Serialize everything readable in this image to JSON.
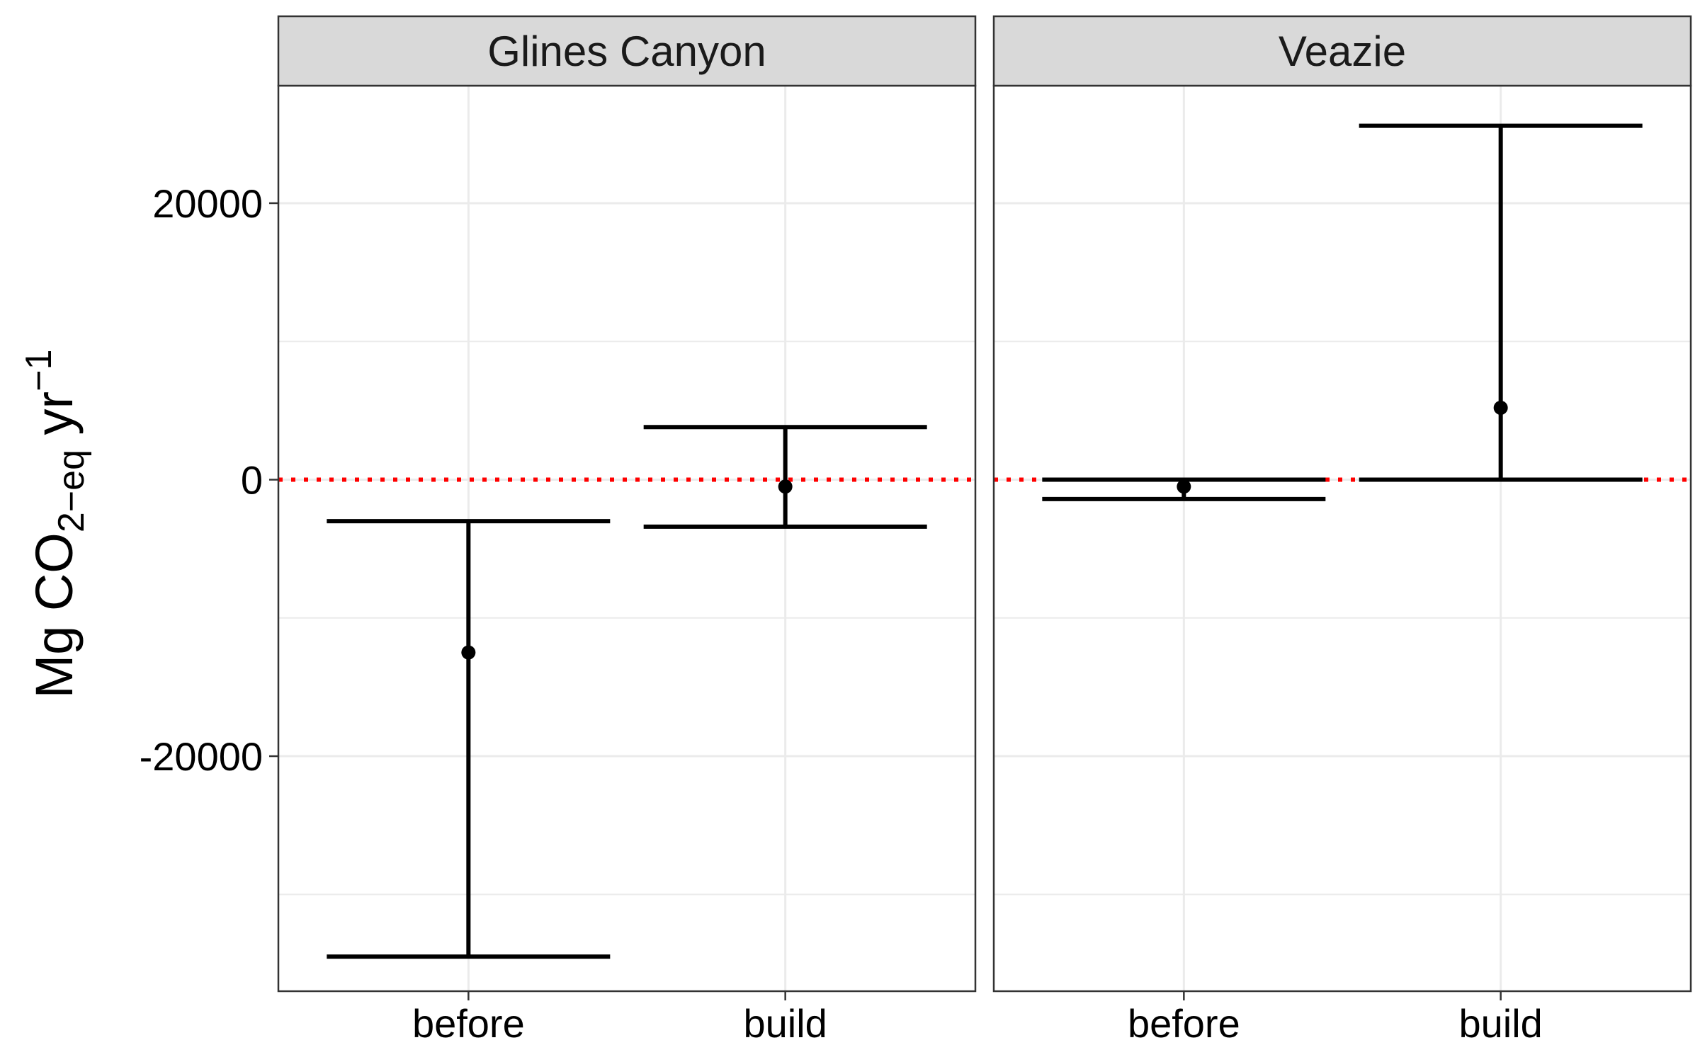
{
  "chart_data": {
    "type": "errorbar",
    "ylabel": {
      "base": "Mg CO",
      "sub": "2−eq",
      "mid": " yr",
      "sup": "−1"
    },
    "ylim": [
      -37000,
      28500
    ],
    "y_ticks": [
      -20000,
      0,
      20000
    ],
    "y_minor_ticks": [
      -30000,
      -10000,
      10000
    ],
    "grid": true,
    "reference_line": {
      "y": 0,
      "color": "#ff0000",
      "style": "dotted"
    },
    "categories": [
      "before",
      "build"
    ],
    "panels": [
      {
        "name": "Glines Canyon",
        "points": [
          {
            "x": "before",
            "y": -12500,
            "ymin": -34500,
            "ymax": -3000
          },
          {
            "x": "build",
            "y": -500,
            "ymin": -3400,
            "ymax": 3800
          }
        ]
      },
      {
        "name": "Veazie",
        "points": [
          {
            "x": "before",
            "y": -500,
            "ymin": -1400,
            "ymax": 0
          },
          {
            "x": "build",
            "y": 5200,
            "ymin": 0,
            "ymax": 25600
          }
        ]
      }
    ]
  },
  "colors": {
    "reference_line": "#ff0000",
    "strip_background": "#d9d9d9",
    "grid": "#ebebeb",
    "marks": "#000000",
    "panel_border": "#333333"
  }
}
